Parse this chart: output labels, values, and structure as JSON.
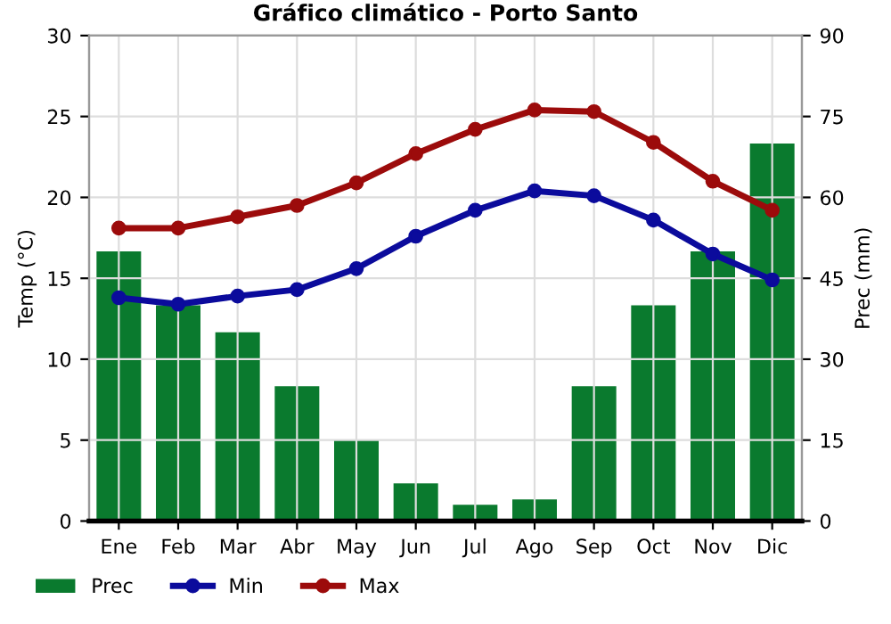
{
  "chart_data": {
    "type": "line",
    "title": "Gráfico climático - Porto Santo",
    "ylabel": "Temp (°C)",
    "y2label": "Prec (mm)",
    "categories": [
      "Ene",
      "Feb",
      "Mar",
      "Abr",
      "May",
      "Jun",
      "Jul",
      "Ago",
      "Sep",
      "Oct",
      "Nov",
      "Dic"
    ],
    "series": [
      {
        "name": "Prec",
        "type": "bar",
        "axis": "y2",
        "color": "#0a7a2e",
        "values": [
          50,
          40,
          35,
          25,
          15,
          7,
          3,
          4,
          25,
          40,
          50,
          70
        ]
      },
      {
        "name": "Min",
        "color": "#0b0b9c",
        "values": [
          13.8,
          13.4,
          13.9,
          14.3,
          15.6,
          17.6,
          19.2,
          20.4,
          20.1,
          18.6,
          16.5,
          14.9
        ]
      },
      {
        "name": "Max",
        "color": "#9c0b0b",
        "values": [
          18.1,
          18.1,
          18.8,
          19.5,
          20.9,
          22.7,
          24.2,
          25.4,
          25.3,
          23.4,
          21.0,
          19.2
        ]
      }
    ],
    "ylim": [
      0,
      30
    ],
    "yticks": [
      0,
      5,
      10,
      15,
      20,
      25,
      30
    ],
    "y2lim": [
      0,
      90
    ],
    "y2ticks": [
      0,
      15,
      30,
      45,
      60,
      75,
      90
    ],
    "grid": true,
    "legend": "bottom",
    "marker": "circle",
    "line_style": "solid"
  }
}
